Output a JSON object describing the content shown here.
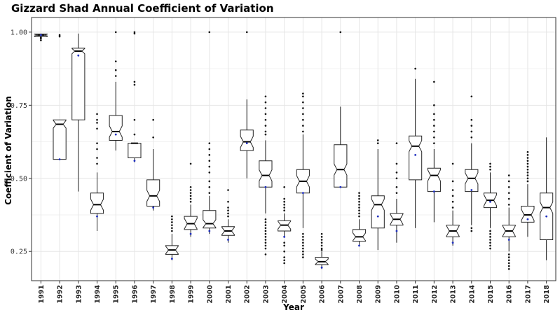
{
  "chart_data": {
    "type": "boxplot",
    "title": "Gizzard Shad Annual Coefficient of Variation",
    "xlabel": "Year",
    "ylabel": "Coefficient of Variation",
    "ylim": [
      0.15,
      1.05
    ],
    "yticks": [
      0.25,
      0.5,
      0.75,
      1.0
    ],
    "ytick_labels": [
      "0.25",
      "0.50",
      "0.75",
      "1.00"
    ],
    "grid": true,
    "notched": true,
    "categories": [
      "1991",
      "1992",
      "1993",
      "1994",
      "1995",
      "1996",
      "1997",
      "1998",
      "1999",
      "2000",
      "2001",
      "2002",
      "2003",
      "2004",
      "2005",
      "2006",
      "2007",
      "2008",
      "2009",
      "2010",
      "2011",
      "2012",
      "2013",
      "2014",
      "2015",
      "2016",
      "2017",
      "2018"
    ],
    "series": [
      {
        "year": "1991",
        "q1": 0.985,
        "median": 0.99,
        "q3": 0.993,
        "low": 0.975,
        "high": 0.995,
        "mean": 0.99,
        "outliers": [
          0.972,
          0.978,
          0.981,
          0.983
        ]
      },
      {
        "year": "1992",
        "q1": 0.565,
        "median": 0.685,
        "q3": 0.7,
        "low": 0.565,
        "high": 0.7,
        "mean": 0.565,
        "outliers": [
          0.985,
          0.99
        ]
      },
      {
        "year": "1993",
        "q1": 0.7,
        "median": 0.935,
        "q3": 0.945,
        "low": 0.455,
        "high": 0.995,
        "mean": 0.92,
        "outliers": []
      },
      {
        "year": "1994",
        "q1": 0.38,
        "median": 0.41,
        "q3": 0.45,
        "low": 0.32,
        "high": 0.52,
        "mean": 0.37,
        "outliers": [
          0.55,
          0.57,
          0.6,
          0.62,
          0.67,
          0.69,
          0.7,
          0.72
        ]
      },
      {
        "year": "1995",
        "q1": 0.63,
        "median": 0.66,
        "q3": 0.715,
        "low": 0.595,
        "high": 0.83,
        "mean": 0.65,
        "outliers": [
          0.85,
          0.87,
          0.9,
          1.0
        ]
      },
      {
        "year": "1996",
        "q1": 0.57,
        "median": 0.62,
        "q3": 0.62,
        "low": 0.555,
        "high": 0.62,
        "mean": 0.56,
        "outliers": [
          0.65,
          0.7,
          0.82,
          0.83,
          0.995,
          1.0
        ]
      },
      {
        "year": "1997",
        "q1": 0.405,
        "median": 0.44,
        "q3": 0.495,
        "low": 0.39,
        "high": 0.6,
        "mean": 0.4,
        "outliers": [
          0.64,
          0.7
        ]
      },
      {
        "year": "1998",
        "q1": 0.24,
        "median": 0.255,
        "q3": 0.27,
        "low": 0.22,
        "high": 0.31,
        "mean": 0.225,
        "outliers": [
          0.32,
          0.33,
          0.34,
          0.35,
          0.36,
          0.37
        ]
      },
      {
        "year": "1999",
        "q1": 0.325,
        "median": 0.345,
        "q3": 0.37,
        "low": 0.3,
        "high": 0.41,
        "mean": 0.31,
        "outliers": [
          0.42,
          0.43,
          0.44,
          0.45,
          0.46,
          0.47,
          0.55
        ]
      },
      {
        "year": "2000",
        "q1": 0.33,
        "median": 0.345,
        "q3": 0.39,
        "low": 0.31,
        "high": 0.44,
        "mean": 0.32,
        "outliers": [
          0.45,
          0.47,
          0.49,
          0.52,
          0.54,
          0.56,
          0.58,
          0.6,
          0.62,
          1.0
        ]
      },
      {
        "year": "2001",
        "q1": 0.305,
        "median": 0.32,
        "q3": 0.335,
        "low": 0.28,
        "high": 0.36,
        "mean": 0.29,
        "outliers": [
          0.37,
          0.38,
          0.39,
          0.4,
          0.42,
          0.46
        ]
      },
      {
        "year": "2002",
        "q1": 0.595,
        "median": 0.625,
        "q3": 0.665,
        "low": 0.5,
        "high": 0.77,
        "mean": 0.62,
        "outliers": [
          1.0
        ]
      },
      {
        "year": "2003",
        "q1": 0.47,
        "median": 0.51,
        "q3": 0.56,
        "low": 0.38,
        "high": 0.63,
        "mean": 0.47,
        "outliers": [
          0.24,
          0.26,
          0.27,
          0.28,
          0.29,
          0.3,
          0.31,
          0.32,
          0.33,
          0.34,
          0.35,
          0.36,
          0.65,
          0.66,
          0.68,
          0.7,
          0.72,
          0.74,
          0.76,
          0.78
        ]
      },
      {
        "year": "2004",
        "q1": 0.32,
        "median": 0.34,
        "q3": 0.355,
        "low": 0.3,
        "high": 0.38,
        "mean": 0.3,
        "outliers": [
          0.21,
          0.22,
          0.23,
          0.25,
          0.27,
          0.28,
          0.39,
          0.4,
          0.41,
          0.42,
          0.43,
          0.47
        ]
      },
      {
        "year": "2005",
        "q1": 0.45,
        "median": 0.49,
        "q3": 0.53,
        "low": 0.33,
        "high": 0.65,
        "mean": 0.45,
        "outliers": [
          0.23,
          0.24,
          0.25,
          0.26,
          0.27,
          0.28,
          0.29,
          0.3,
          0.31,
          0.66,
          0.68,
          0.7,
          0.72,
          0.74,
          0.76,
          0.78,
          0.79
        ]
      },
      {
        "year": "2006",
        "q1": 0.205,
        "median": 0.215,
        "q3": 0.23,
        "low": 0.19,
        "high": 0.25,
        "mean": 0.195,
        "outliers": [
          0.255,
          0.26,
          0.27,
          0.28,
          0.29,
          0.3,
          0.31
        ]
      },
      {
        "year": "2007",
        "q1": 0.47,
        "median": 0.53,
        "q3": 0.615,
        "low": 0.47,
        "high": 0.745,
        "mean": 0.47,
        "outliers": [
          1.0
        ]
      },
      {
        "year": "2008",
        "q1": 0.285,
        "median": 0.3,
        "q3": 0.325,
        "low": 0.27,
        "high": 0.36,
        "mean": 0.27,
        "outliers": [
          0.37,
          0.38,
          0.39,
          0.4,
          0.41,
          0.42,
          0.43,
          0.44,
          0.45
        ]
      },
      {
        "year": "2009",
        "q1": 0.33,
        "median": 0.41,
        "q3": 0.44,
        "low": 0.255,
        "high": 0.6,
        "mean": 0.37,
        "outliers": [
          0.62,
          0.63
        ]
      },
      {
        "year": "2010",
        "q1": 0.34,
        "median": 0.36,
        "q3": 0.38,
        "low": 0.28,
        "high": 0.43,
        "mean": 0.32,
        "outliers": [
          0.45,
          0.47,
          0.5,
          0.52,
          0.55,
          0.62
        ]
      },
      {
        "year": "2011",
        "q1": 0.495,
        "median": 0.61,
        "q3": 0.645,
        "low": 0.33,
        "high": 0.84,
        "mean": 0.58,
        "outliers": [
          0.875
        ]
      },
      {
        "year": "2012",
        "q1": 0.455,
        "median": 0.51,
        "q3": 0.535,
        "low": 0.35,
        "high": 0.6,
        "mean": 0.455,
        "outliers": [
          0.62,
          0.64,
          0.66,
          0.68,
          0.7,
          0.72,
          0.75,
          0.83
        ]
      },
      {
        "year": "2013",
        "q1": 0.3,
        "median": 0.32,
        "q3": 0.34,
        "low": 0.27,
        "high": 0.39,
        "mean": 0.28,
        "outliers": [
          0.4,
          0.42,
          0.44,
          0.46,
          0.49,
          0.55
        ]
      },
      {
        "year": "2014",
        "q1": 0.455,
        "median": 0.5,
        "q3": 0.53,
        "low": 0.34,
        "high": 0.62,
        "mean": 0.46,
        "outliers": [
          0.32,
          0.33,
          0.64,
          0.66,
          0.68,
          0.7,
          0.78
        ]
      },
      {
        "year": "2015",
        "q1": 0.4,
        "median": 0.425,
        "q3": 0.45,
        "low": 0.33,
        "high": 0.52,
        "mean": 0.42,
        "outliers": [
          0.26,
          0.27,
          0.28,
          0.29,
          0.3,
          0.31,
          0.32,
          0.53,
          0.54,
          0.55
        ]
      },
      {
        "year": "2016",
        "q1": 0.3,
        "median": 0.32,
        "q3": 0.34,
        "low": 0.25,
        "high": 0.4,
        "mean": 0.29,
        "outliers": [
          0.19,
          0.2,
          0.21,
          0.22,
          0.23,
          0.24,
          0.41,
          0.43,
          0.45,
          0.47,
          0.49,
          0.51
        ]
      },
      {
        "year": "2017",
        "q1": 0.35,
        "median": 0.375,
        "q3": 0.405,
        "low": 0.3,
        "high": 0.48,
        "mean": 0.36,
        "outliers": [
          0.49,
          0.5,
          0.51,
          0.52,
          0.53,
          0.54,
          0.55,
          0.56,
          0.57,
          0.58,
          0.59
        ]
      },
      {
        "year": "2018",
        "q1": 0.29,
        "median": 0.4,
        "q3": 0.45,
        "low": 0.22,
        "high": 0.64,
        "mean": 0.37,
        "outliers": []
      }
    ],
    "colors": {
      "box_fill": "#ffffff",
      "box_stroke": "#222222",
      "mean_point": "#1f2fbf",
      "grid": "#e6e6e6"
    }
  }
}
